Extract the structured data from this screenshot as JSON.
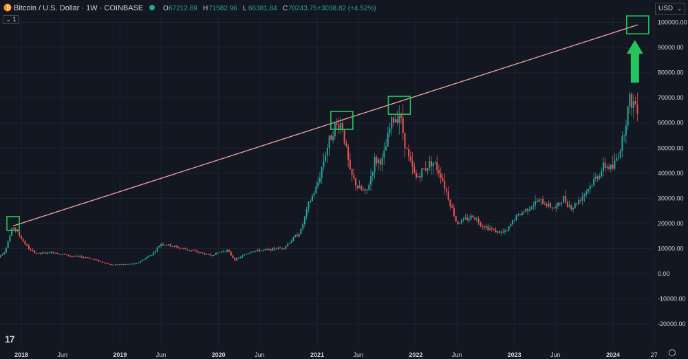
{
  "header": {
    "symbol_title": "Bitcoin / U.S. Dollar · 1W · COINBASE",
    "ohlc": [
      {
        "label": "O",
        "value": "67212.69"
      },
      {
        "label": "H",
        "value": "71582.96"
      },
      {
        "label": "L",
        "value": "66381.84"
      },
      {
        "label": "C",
        "value": "70243.75"
      }
    ],
    "change": "+3038.82 (+4.52%)",
    "currency": "USD",
    "collapse_label": "1",
    "logo_text": "17"
  },
  "colors": {
    "background": "#131722",
    "up": "#26a69a",
    "down": "#ef5350",
    "trendline": "#f4a7a7",
    "highlight": "#22c55e",
    "text": "#d1d4dc"
  },
  "chart_data": {
    "type": "candlestick",
    "y_ticks": [
      "100000.00",
      "90000.00",
      "80000.00",
      "70000.00",
      "60000.00",
      "50000.00",
      "40000.00",
      "30000.00",
      "20000.00",
      "10000.00",
      "0.00",
      "-10000.00",
      "-20000.00"
    ],
    "x_ticks": [
      {
        "label": "2018",
        "year": true,
        "date": "2018-01"
      },
      {
        "label": "Jun",
        "year": false,
        "date": "2018-06"
      },
      {
        "label": "2019",
        "year": true,
        "date": "2019-01"
      },
      {
        "label": "Jun",
        "year": false,
        "date": "2019-06"
      },
      {
        "label": "2020",
        "year": true,
        "date": "2020-01"
      },
      {
        "label": "Jun",
        "year": false,
        "date": "2020-06"
      },
      {
        "label": "2021",
        "year": true,
        "date": "2021-01"
      },
      {
        "label": "Jun",
        "year": false,
        "date": "2021-06"
      },
      {
        "label": "2022",
        "year": true,
        "date": "2022-01"
      },
      {
        "label": "Jun",
        "year": false,
        "date": "2022-06"
      },
      {
        "label": "2023",
        "year": true,
        "date": "2023-01"
      },
      {
        "label": "Jun",
        "year": false,
        "date": "2023-06"
      },
      {
        "label": "2024",
        "year": true,
        "date": "2024-01"
      },
      {
        "label": "27",
        "year": false,
        "date": "2024-06"
      }
    ],
    "ylim": [
      -20000,
      100000
    ],
    "price_path": [
      [
        "2017-10",
        6000
      ],
      [
        "2017-11",
        9000
      ],
      [
        "2017-12",
        19000
      ],
      [
        "2018-01",
        14000
      ],
      [
        "2018-02",
        9500
      ],
      [
        "2018-03",
        8000
      ],
      [
        "2018-05",
        8500
      ],
      [
        "2018-07",
        7000
      ],
      [
        "2018-09",
        6500
      ],
      [
        "2018-11",
        4500
      ],
      [
        "2018-12",
        3500
      ],
      [
        "2019-03",
        4000
      ],
      [
        "2019-05",
        8000
      ],
      [
        "2019-06",
        12000
      ],
      [
        "2019-08",
        10500
      ],
      [
        "2019-10",
        9000
      ],
      [
        "2019-12",
        7300
      ],
      [
        "2020-02",
        9500
      ],
      [
        "2020-03",
        5500
      ],
      [
        "2020-05",
        9000
      ],
      [
        "2020-07",
        9500
      ],
      [
        "2020-09",
        10500
      ],
      [
        "2020-11",
        17000
      ],
      [
        "2020-12",
        28000
      ],
      [
        "2021-01",
        35000
      ],
      [
        "2021-02",
        48000
      ],
      [
        "2021-03",
        58000
      ],
      [
        "2021-04",
        60000
      ],
      [
        "2021-05",
        40000
      ],
      [
        "2021-06",
        34000
      ],
      [
        "2021-07",
        32000
      ],
      [
        "2021-08",
        45000
      ],
      [
        "2021-09",
        45000
      ],
      [
        "2021-10",
        60000
      ],
      [
        "2021-11",
        64000
      ],
      [
        "2021-12",
        47000
      ],
      [
        "2022-01",
        38000
      ],
      [
        "2022-03",
        45000
      ],
      [
        "2022-04",
        40000
      ],
      [
        "2022-05",
        30000
      ],
      [
        "2022-06",
        20000
      ],
      [
        "2022-08",
        23000
      ],
      [
        "2022-09",
        19500
      ],
      [
        "2022-11",
        16500
      ],
      [
        "2022-12",
        16500
      ],
      [
        "2023-01",
        22000
      ],
      [
        "2023-03",
        27000
      ],
      [
        "2023-04",
        29000
      ],
      [
        "2023-06",
        26000
      ],
      [
        "2023-07",
        30000
      ],
      [
        "2023-08",
        26000
      ],
      [
        "2023-10",
        34000
      ],
      [
        "2023-12",
        43000
      ],
      [
        "2024-01",
        42000
      ],
      [
        "2024-02",
        51000
      ],
      [
        "2024-03",
        69000
      ],
      [
        "2024-04",
        67000
      ]
    ],
    "trendline": {
      "start": [
        "2017-12",
        19000
      ],
      "end": [
        "2024-04",
        99000
      ]
    },
    "highlight_boxes": [
      {
        "date": "2017-12",
        "price": 20000
      },
      {
        "date": "2021-04",
        "price": 61000
      },
      {
        "date": "2021-11",
        "price": 67000
      },
      {
        "date": "2024-04",
        "price": 99000
      }
    ],
    "arrow": {
      "date": "2024-04",
      "from_price": 76000,
      "to_price": 93000
    }
  }
}
